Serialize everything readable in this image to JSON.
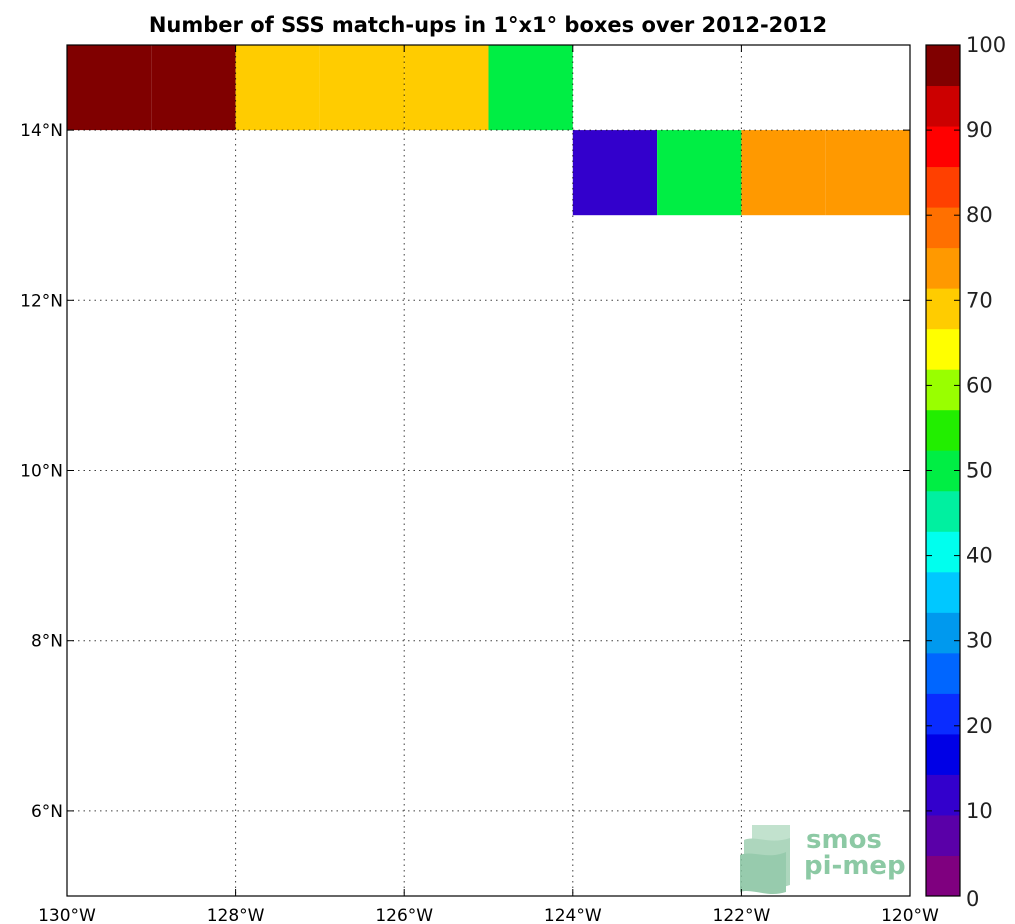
{
  "chart_data": {
    "type": "heatmap",
    "title": "Number of SSS match-ups in 1°x1° boxes over 2012-2012",
    "xlim": [
      -130,
      -120
    ],
    "ylim": [
      5,
      15
    ],
    "x_ticks": [
      {
        "value": -130,
        "label": "130°W"
      },
      {
        "value": -128,
        "label": "128°W"
      },
      {
        "value": -126,
        "label": "126°W"
      },
      {
        "value": -124,
        "label": "124°W"
      },
      {
        "value": -122,
        "label": "122°W"
      },
      {
        "value": -120,
        "label": "120°W"
      }
    ],
    "y_ticks": [
      {
        "value": 6,
        "label": "6°N"
      },
      {
        "value": 8,
        "label": "8°N"
      },
      {
        "value": 10,
        "label": "10°N"
      },
      {
        "value": 12,
        "label": "12°N"
      },
      {
        "value": 14,
        "label": "14°N"
      }
    ],
    "grid": true,
    "cells": [
      {
        "lon": -130,
        "lat": 14,
        "value": 100
      },
      {
        "lon": -129,
        "lat": 14,
        "value": 100
      },
      {
        "lon": -128,
        "lat": 14,
        "value": 67
      },
      {
        "lon": -127,
        "lat": 14,
        "value": 67
      },
      {
        "lon": -126,
        "lat": 14,
        "value": 67
      },
      {
        "lon": -125,
        "lat": 14,
        "value": 52
      },
      {
        "lon": -124,
        "lat": 13,
        "value": 12
      },
      {
        "lon": -123,
        "lat": 13,
        "value": 52
      },
      {
        "lon": -122,
        "lat": 13,
        "value": 72
      },
      {
        "lon": -121,
        "lat": 13,
        "value": 72
      }
    ],
    "colorbar": {
      "min": 0,
      "max": 100,
      "ticks": [
        {
          "value": 0,
          "label": "0"
        },
        {
          "value": 10,
          "label": "10"
        },
        {
          "value": 20,
          "label": "20"
        },
        {
          "value": 30,
          "label": "30"
        },
        {
          "value": 40,
          "label": "40"
        },
        {
          "value": 50,
          "label": "50"
        },
        {
          "value": 60,
          "label": "60"
        },
        {
          "value": 70,
          "label": "70"
        },
        {
          "value": 80,
          "label": "80"
        },
        {
          "value": 90,
          "label": "90"
        },
        {
          "value": 100,
          "label": "100"
        }
      ],
      "colors": [
        "#7f007f",
        "#5a00a8",
        "#3300cc",
        "#0000e6",
        "#0a2cff",
        "#0066ff",
        "#0099ee",
        "#00c8ff",
        "#00ffee",
        "#00f0a0",
        "#00ee44",
        "#22ee00",
        "#99ff00",
        "#ffff00",
        "#ffcc00",
        "#ff9900",
        "#ff7000",
        "#ff4000",
        "#ff0000",
        "#cc0000",
        "#800000"
      ]
    },
    "watermark": {
      "line1": "smos",
      "line2": "pi-mep"
    }
  }
}
